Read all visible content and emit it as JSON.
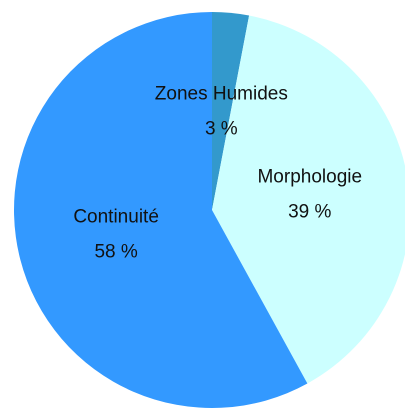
{
  "chart_data": {
    "type": "pie",
    "categories": [
      "Zones Humides",
      "Morphologie",
      "Continuité"
    ],
    "values": [
      3,
      39,
      58
    ],
    "value_labels": [
      "3 %",
      "39 %",
      "58 %"
    ],
    "colors": [
      "#3399cc",
      "#ccffff",
      "#3399ff"
    ]
  }
}
